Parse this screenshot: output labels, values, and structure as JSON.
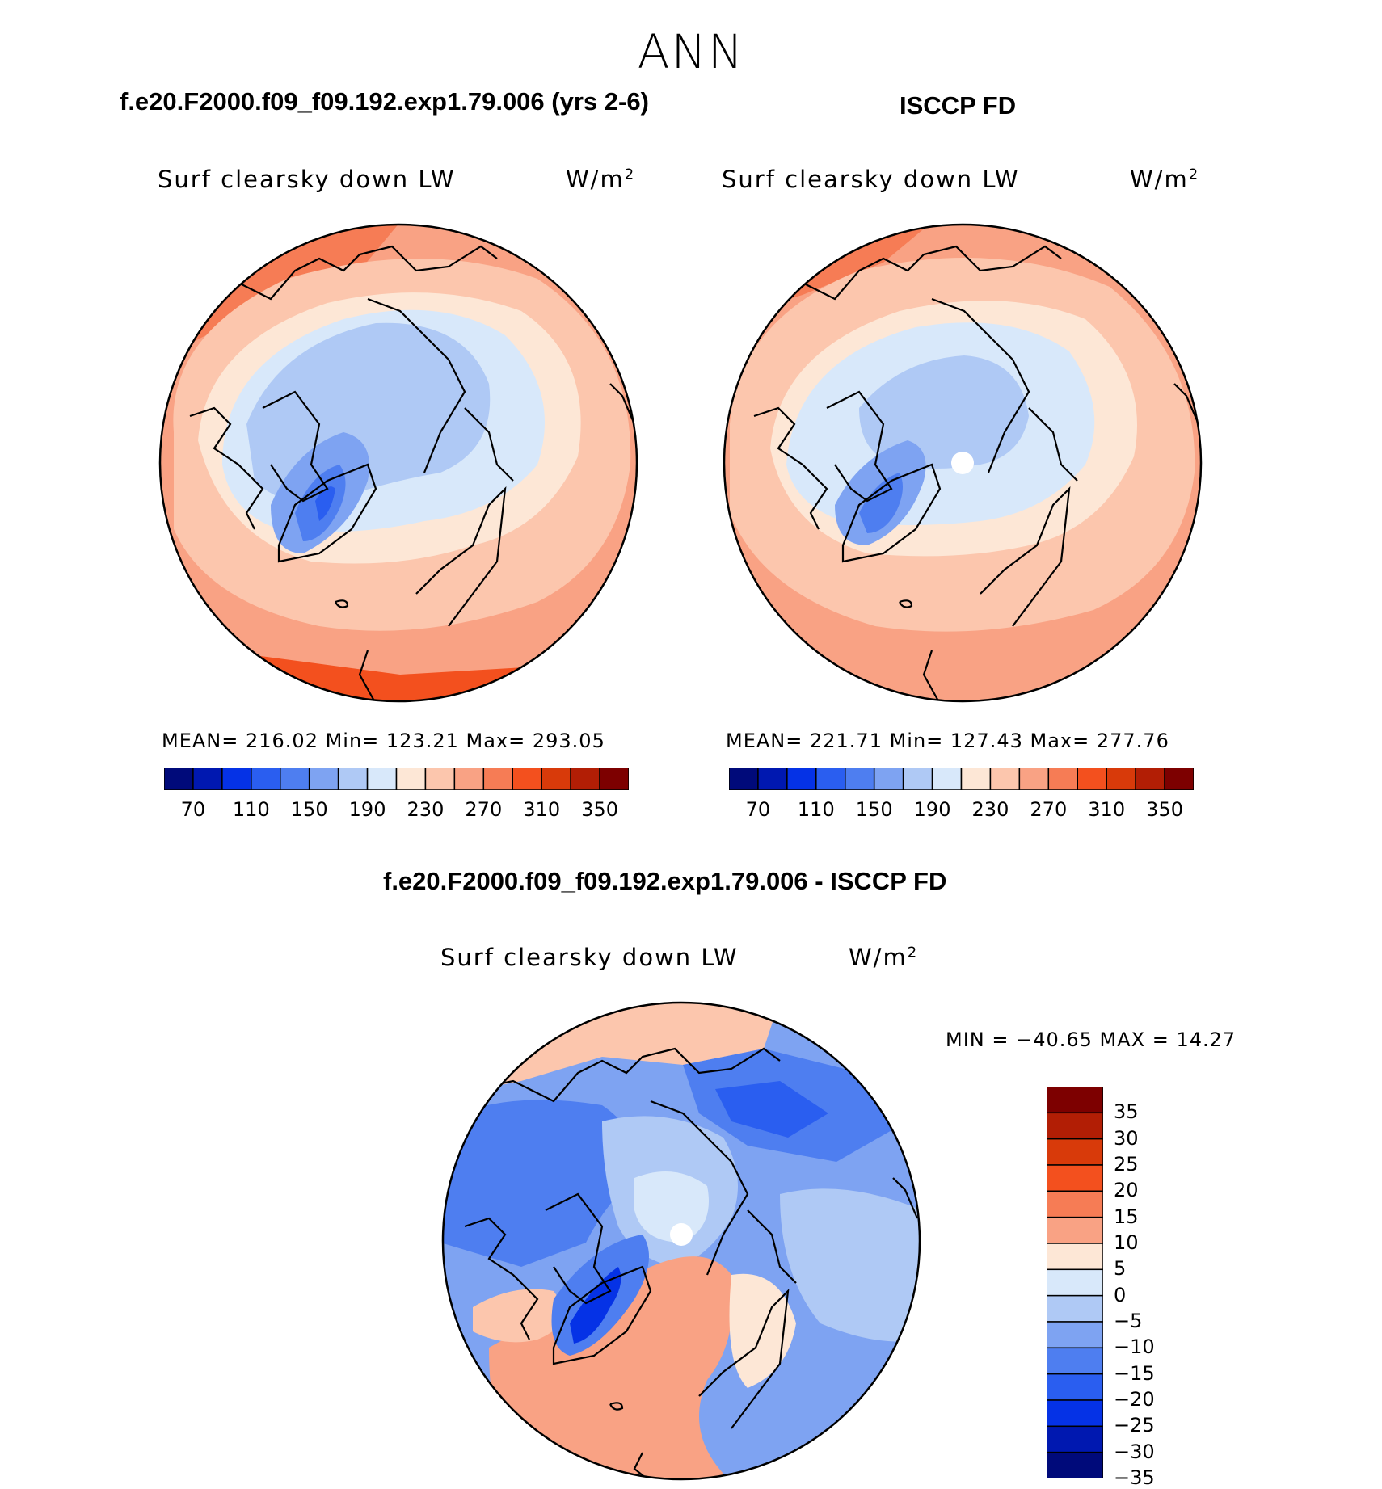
{
  "season": "ANN",
  "panels": {
    "model": {
      "case_title": "f.e20.F2000.f09_f09.192.exp1.79.006 (yrs 2-6)",
      "variable": "Surf clearsky down LW",
      "units": "W/m",
      "units_exp": "2",
      "stats": "MEAN= 216.02   Min= 123.21   Max= 293.05"
    },
    "obs": {
      "case_title": "ISCCP FD",
      "variable": "Surf clearsky down LW",
      "units": "W/m",
      "units_exp": "2",
      "stats": "MEAN= 221.71   Min= 127.43   Max= 277.76"
    },
    "diff": {
      "case_title": "f.e20.F2000.f09_f09.192.exp1.79.006 - ISCCP FD",
      "variable": "Surf clearsky down LW",
      "units": "W/m",
      "units_exp": "2",
      "stats": "MIN = −40.65 MAX =   14.27"
    }
  },
  "colorbar_abs": {
    "colors": [
      "#000a7a",
      "#0018b0",
      "#0532e6",
      "#2a5ef0",
      "#4e7ef0",
      "#7ea3f2",
      "#afc9f5",
      "#d8e8fa",
      "#fde7d6",
      "#fcc6ad",
      "#f9a284",
      "#f67c55",
      "#f3501e",
      "#d83a0a",
      "#b21e05",
      "#7d0000"
    ],
    "tick_labels": [
      "70",
      "110",
      "150",
      "190",
      "230",
      "270",
      "310",
      "350"
    ]
  },
  "colorbar_diff": {
    "colors": [
      "#7d0000",
      "#b21e05",
      "#d83a0a",
      "#f3501e",
      "#f67c55",
      "#f9a284",
      "#fde7d6",
      "#d8e8fa",
      "#afc9f5",
      "#7ea3f2",
      "#4e7ef0",
      "#2a5ef0",
      "#0532e6",
      "#0018b0",
      "#000a7a"
    ],
    "tick_labels": [
      "35",
      "30",
      "25",
      "20",
      "15",
      "10",
      "5",
      "0",
      "−5",
      "−10",
      "−15",
      "−20",
      "−25",
      "−30",
      "−35"
    ]
  }
}
